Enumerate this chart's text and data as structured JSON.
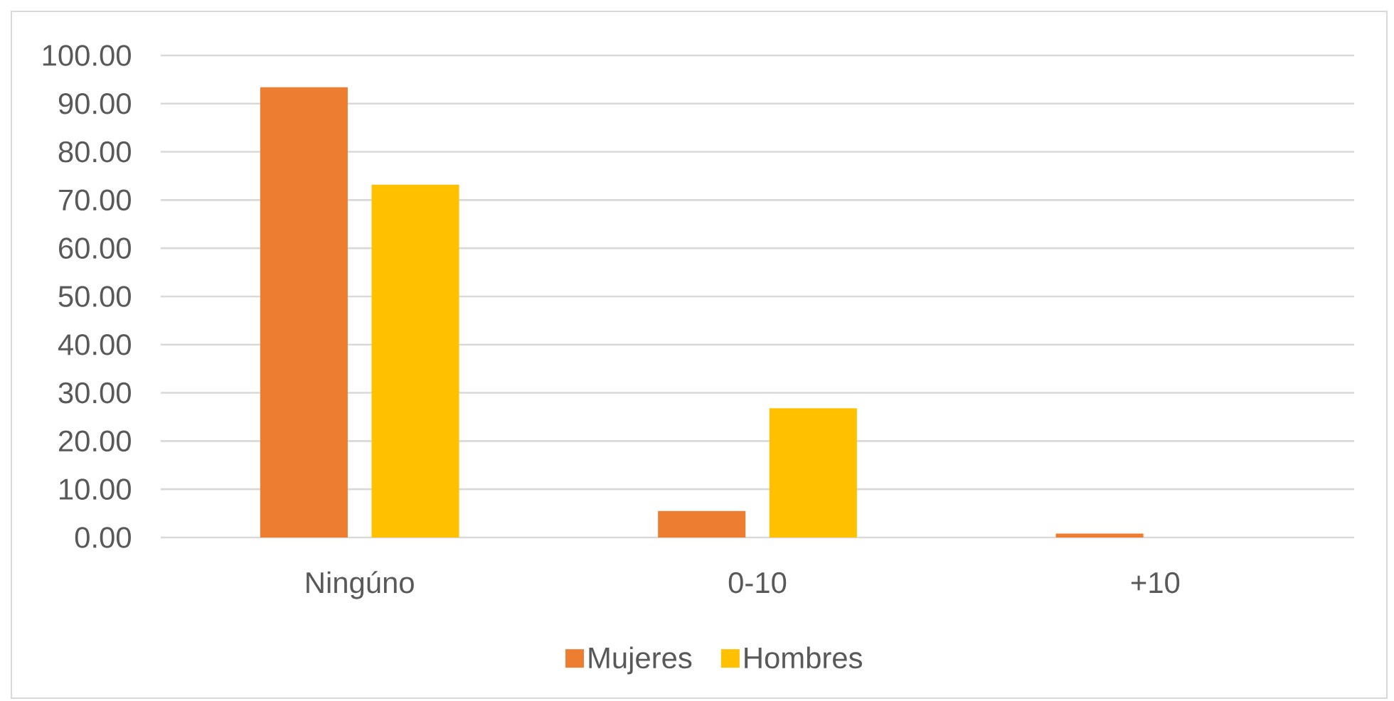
{
  "chart_data": {
    "type": "bar",
    "categories": [
      "Ningúno",
      "0-10",
      "+10"
    ],
    "series": [
      {
        "name": "Mujeres",
        "color": "#ed7d31",
        "values": [
          93.4,
          5.5,
          0.8
        ]
      },
      {
        "name": "Hombres",
        "color": "#ffc000",
        "values": [
          73.2,
          26.8,
          0
        ]
      }
    ],
    "ylim": [
      0,
      100
    ],
    "yticks": [
      {
        "value": 0,
        "label": "0.00"
      },
      {
        "value": 10,
        "label": "10.00"
      },
      {
        "value": 20,
        "label": "20.00"
      },
      {
        "value": 30,
        "label": "30.00"
      },
      {
        "value": 40,
        "label": "40.00"
      },
      {
        "value": 50,
        "label": "50.00"
      },
      {
        "value": 60,
        "label": "60.00"
      },
      {
        "value": 70,
        "label": "70.00"
      },
      {
        "value": 80,
        "label": "80.00"
      },
      {
        "value": 90,
        "label": "90.00"
      },
      {
        "value": 100,
        "label": "100.00"
      }
    ],
    "grid": "y",
    "legend": "bottom"
  }
}
